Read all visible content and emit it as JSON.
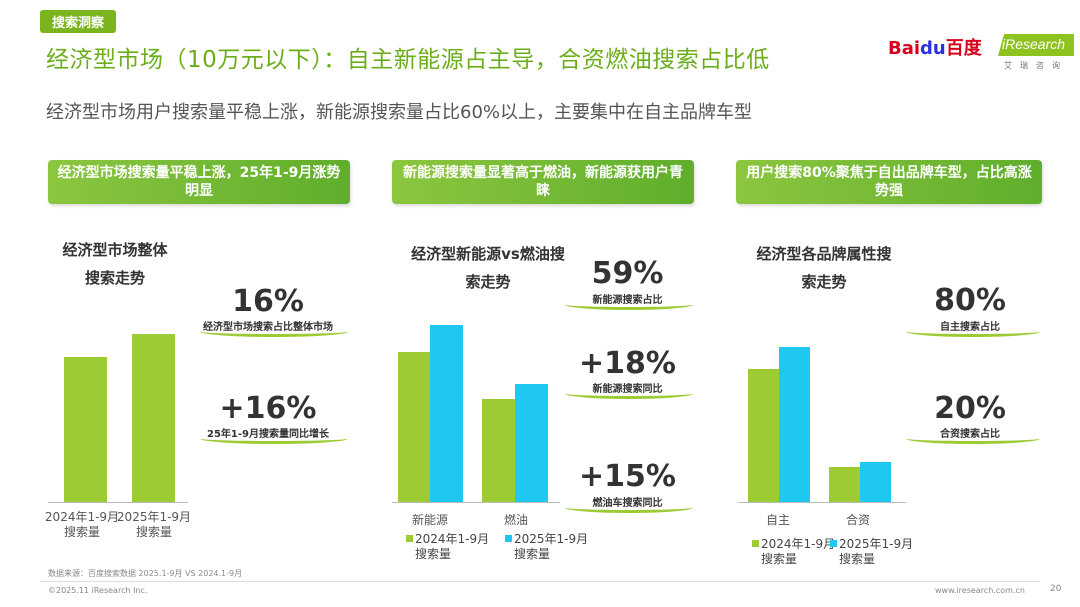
{
  "header": {
    "tag": "搜索洞察",
    "title": "经济型市场（10万元以下）：自主新能源占主导，合资燃油搜索占比低",
    "subtitle": "经济型市场用户搜索量平稳上涨，新能源搜索量占比60%以上，主要集中在自主品牌车型",
    "logo_baidu_a": "Bai",
    "logo_baidu_b": "du",
    "logo_baidu_c": "百度",
    "logo_iresearch": "iResearch",
    "logo_iresearch_sub": "艾瑞咨询"
  },
  "colors": {
    "accent_green": "#9ccb34",
    "accent_blue": "#1ec8f0",
    "title_green": "#6cae1a"
  },
  "panels": [
    {
      "banner": "经济型市场搜索量平稳上涨，25年1-9月涨势明显",
      "chart_title_line1": "经济型市场整体",
      "chart_title_line2": "搜索走势",
      "stats": [
        {
          "value": "16%",
          "label": "经济型市场搜索占比整体市场"
        },
        {
          "value": "+16%",
          "label": "25年1-9月搜索量同比增长"
        }
      ]
    },
    {
      "banner": "新能源搜索量显著高于燃油，新能源获用户青睐",
      "chart_title_line1": "经济型新能源vs燃油搜",
      "chart_title_line2": "索走势",
      "stats": [
        {
          "value": "59%",
          "label": "新能源搜索占比"
        },
        {
          "value": "+18%",
          "label": "新能源搜索同比"
        },
        {
          "value": "+15%",
          "label": "燃油车搜索同比"
        }
      ]
    },
    {
      "banner": "用户搜索80%聚焦于自出品牌车型，占比高涨势强",
      "chart_title_line1": "经济型各品牌属性搜",
      "chart_title_line2": "索走势",
      "stats": [
        {
          "value": "80%",
          "label": "自主搜索占比"
        },
        {
          "value": "20%",
          "label": "合资搜索占比"
        }
      ]
    }
  ],
  "chart_data": [
    {
      "type": "bar",
      "title": "经济型市场整体搜索走势",
      "categories": [
        "2024年1-9月搜索量",
        "2025年1-9月搜索量"
      ],
      "category_lines": [
        [
          "2024年1-9月",
          "搜索量"
        ],
        [
          "2025年1-9月",
          "搜索量"
        ]
      ],
      "values": [
        100,
        116
      ],
      "ylim": [
        0,
        170
      ]
    },
    {
      "type": "bar",
      "title": "经济型新能源vs燃油搜索走势",
      "categories": [
        "新能源",
        "燃油"
      ],
      "series": [
        {
          "name": "2024年1-9月搜索量",
          "name_lines": [
            "2024年1-9月",
            "搜索量"
          ],
          "values": [
            146,
            100
          ]
        },
        {
          "name": "2025年1-9月搜索量",
          "name_lines": [
            "2025年1-9月",
            "搜索量"
          ],
          "values": [
            173,
            115
          ]
        }
      ],
      "ylim": [
        0,
        200
      ]
    },
    {
      "type": "bar",
      "title": "经济型各品牌属性搜索走势",
      "categories": [
        "自主",
        "合资"
      ],
      "series": [
        {
          "name": "2024年1-9月搜索量",
          "name_lines": [
            "2024年1-9月",
            "搜索量"
          ],
          "values": [
            100,
            26
          ]
        },
        {
          "name": "2025年1-9月搜索量",
          "name_lines": [
            "2025年1-9月",
            "搜索量"
          ],
          "values": [
            117,
            30
          ]
        }
      ],
      "ylim": [
        0,
        140
      ]
    }
  ],
  "footer": {
    "source": "数据来源：百度搜索数据 2025.1-9月 VS 2024.1-9月",
    "copyright": "©2025.11 iResearch Inc.",
    "website": "www.iresearch.com.cn",
    "page": "20"
  }
}
